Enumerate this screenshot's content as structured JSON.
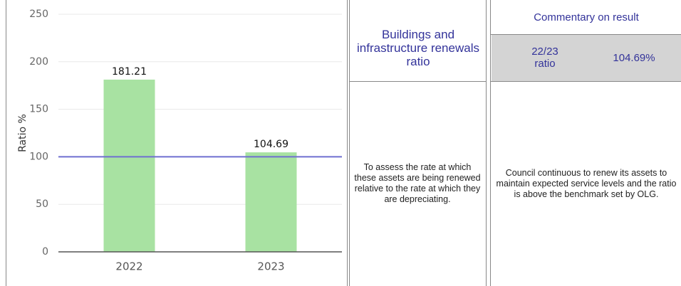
{
  "chart_data": {
    "type": "bar",
    "categories": [
      "2022",
      "2023"
    ],
    "values": [
      181.21,
      104.69
    ],
    "color": "#a8e2a2",
    "y_label": "Ratio %",
    "ylim": [
      0,
      250
    ],
    "yticks": [
      0,
      50,
      100,
      150,
      200,
      250
    ],
    "grid": true,
    "benchmark": 100,
    "benchmark_color": "#6f6fd0"
  },
  "panels": {
    "measure": {
      "title": "Buildings and infrastructure renewals ratio",
      "description": "To assess the rate at which these assets are being renewed relative to the rate at which they are depreciating."
    },
    "commentary": {
      "title": "Commentary on result",
      "ratio_label": "22/23 ratio",
      "ratio_value": "104.69%",
      "text": "Council continuous to renew its assets to maintain expected service levels and the ratio is above the benchmark set by OLG."
    }
  }
}
